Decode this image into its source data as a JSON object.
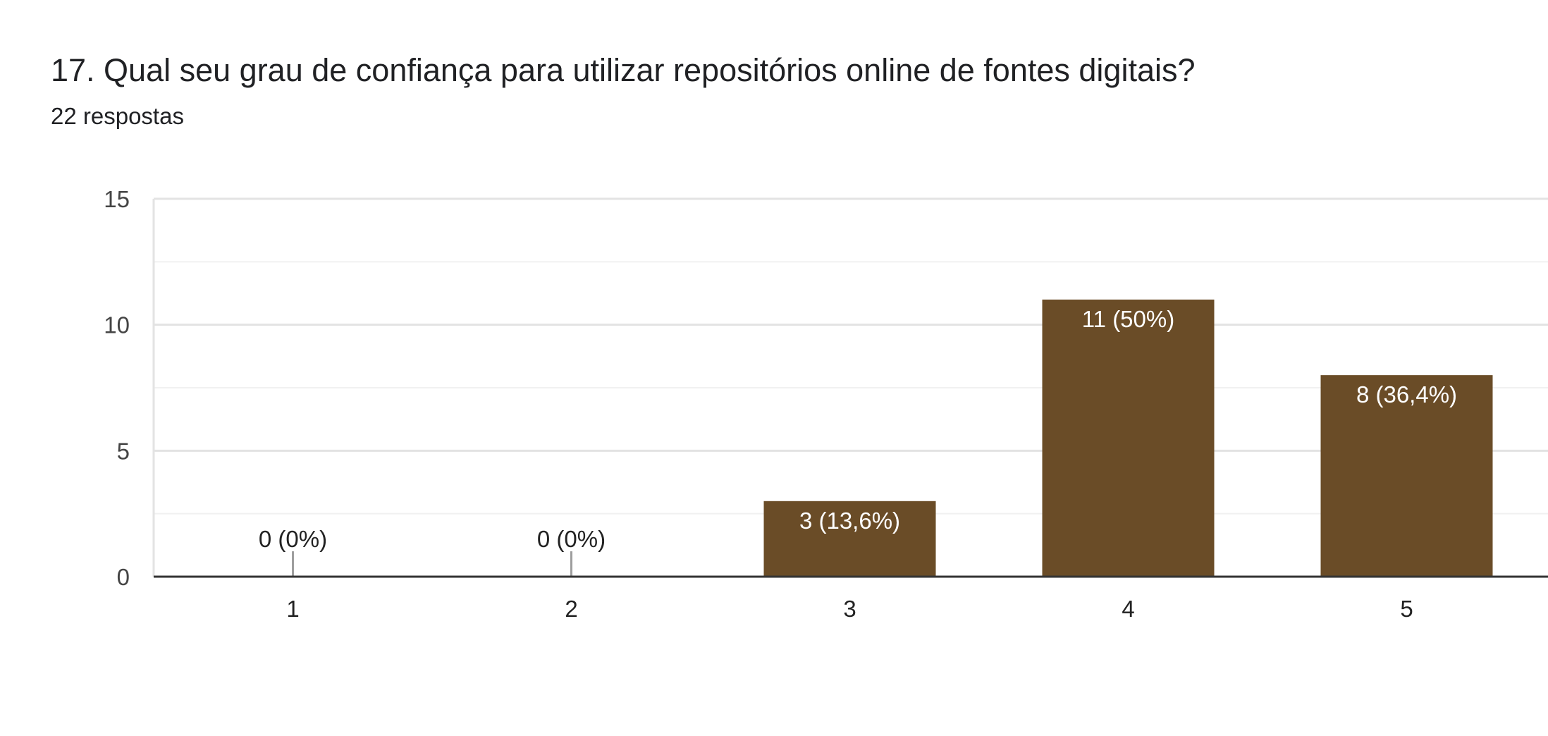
{
  "header": {
    "title": "17. Qual seu grau de confiança para utilizar repositórios online de fontes digitais?",
    "subtitle": "22 respostas"
  },
  "colors": {
    "bar": "#6a4c27",
    "grid_major": "#e3e3e3",
    "grid_minor": "#f1f1f1",
    "axis": "#333333",
    "zero_tick": "#9e9e9e",
    "label_inside": "#ffffff",
    "label_outside": "#222222"
  },
  "chart_data": {
    "type": "bar",
    "categories": [
      "1",
      "2",
      "3",
      "4",
      "5"
    ],
    "values": [
      0,
      0,
      3,
      11,
      8
    ],
    "data_labels": [
      "0 (0%)",
      "0 (0%)",
      "3 (13,6%)",
      "11 (50%)",
      "8 (36,4%)"
    ],
    "title": "",
    "xlabel": "",
    "ylabel": "",
    "ylim": [
      0,
      15
    ],
    "yticks": [
      0,
      5,
      10,
      15
    ],
    "ytick_labels": [
      "0",
      "5",
      "10",
      "15"
    ],
    "grid": true
  }
}
